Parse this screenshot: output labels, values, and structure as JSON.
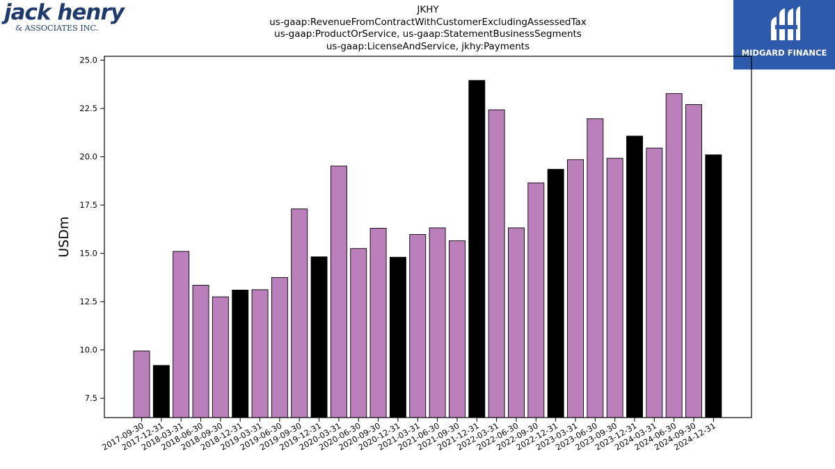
{
  "logos": {
    "left_brand": "jack henry",
    "left_sub": "& ASSOCIATES INC.",
    "right_name": "MIDGARD FINANCE"
  },
  "colors": {
    "bar_primary": "#bb80bb",
    "bar_highlight": "#000000",
    "axis": "#000000"
  },
  "chart_data": {
    "type": "bar",
    "title": "JKHY",
    "subtitle_lines": [
      "us-gaap:RevenueFromContractWithCustomerExcludingAssessedTax",
      "us-gaap:ProductOrService, us-gaap:StatementBusinessSegments",
      "us-gaap:LicenseAndService, jkhy:Payments"
    ],
    "xlabel": "",
    "ylabel": "USDm",
    "ylim": [
      6.5,
      25.2
    ],
    "yticks": [
      "7.5",
      "10.0",
      "12.5",
      "15.0",
      "17.5",
      "20.0",
      "22.5",
      "25.0"
    ],
    "grid": false,
    "legend": "none",
    "categories": [
      "2017-09-30",
      "2017-12-31",
      "2018-03-31",
      "2018-06-30",
      "2018-09-30",
      "2018-12-31",
      "2019-03-31",
      "2019-06-30",
      "2019-09-30",
      "2019-12-31",
      "2020-03-31",
      "2020-06-30",
      "2020-09-30",
      "2020-12-31",
      "2021-03-31",
      "2021-06-30",
      "2021-09-30",
      "2021-12-31",
      "2022-03-31",
      "2022-06-30",
      "2022-09-30",
      "2022-12-31",
      "2023-03-31",
      "2023-06-30",
      "2023-09-30",
      "2023-12-31",
      "2024-03-31",
      "2024-06-30",
      "2024-09-30",
      "2024-12-31"
    ],
    "values": [
      9.95,
      9.2,
      15.1,
      13.35,
      12.75,
      13.1,
      13.12,
      13.75,
      17.3,
      14.82,
      19.52,
      15.25,
      16.3,
      14.8,
      15.98,
      16.32,
      15.65,
      23.95,
      22.43,
      16.32,
      18.65,
      19.35,
      19.85,
      21.97,
      19.92,
      21.07,
      20.45,
      23.27,
      22.7,
      20.1
    ],
    "highlight": [
      false,
      true,
      false,
      false,
      false,
      true,
      false,
      false,
      false,
      true,
      false,
      false,
      false,
      true,
      false,
      false,
      false,
      true,
      false,
      false,
      false,
      true,
      false,
      false,
      false,
      true,
      false,
      false,
      false,
      true
    ]
  }
}
